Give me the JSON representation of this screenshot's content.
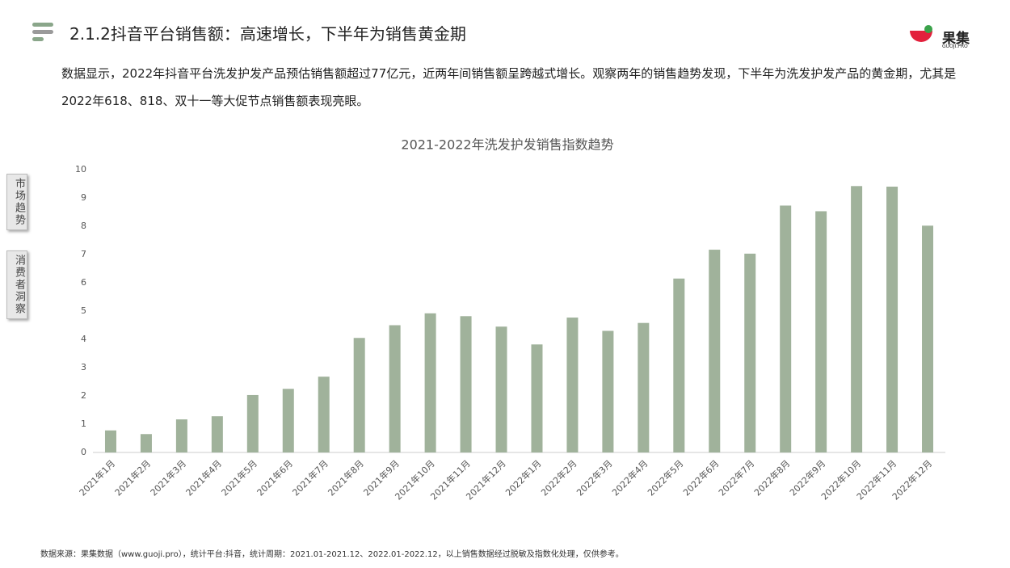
{
  "header": {
    "title": "2.1.2抖音平台销售额：高速增长，下半年为销售黄金期",
    "logo": "果集",
    "logo_sub": "GUOJI.PRO"
  },
  "summary": "数据显示，2022年抖音平台洗发护发产品预估销售额超过77亿元，近两年间销售额呈跨越式增长。观察两年的销售趋势发现，下半年为洗发护发产品的黄金期，尤其是2022年618、818、双十一等大促节点销售额表现亮眼。",
  "side_tabs": [
    "市场趋势",
    "消费者洞察"
  ],
  "footer": "数据来源：果集数据（www.guoji.pro），统计平台:抖音，统计周期：2021.01-2021.12、2022.01-2022.12，以上销售数据经过脱敏及指数化处理，仅供参考。",
  "chart_data": {
    "type": "bar",
    "title": "2021-2022年洗发护发销售指数趋势",
    "categories": [
      "2021年1月",
      "2021年2月",
      "2021年3月",
      "2021年4月",
      "2021年5月",
      "2021年6月",
      "2021年7月",
      "2021年8月",
      "2021年9月",
      "2021年10月",
      "2021年11月",
      "2021年12月",
      "2022年1月",
      "2022年2月",
      "2022年3月",
      "2022年4月",
      "2022年5月",
      "2022年6月",
      "2022年7月",
      "2022年8月",
      "2022年9月",
      "2022年10月",
      "2022年11月",
      "2022年12月"
    ],
    "values": [
      0.78,
      0.65,
      1.17,
      1.28,
      2.03,
      2.25,
      2.68,
      4.05,
      4.5,
      4.92,
      4.82,
      4.45,
      3.82,
      4.77,
      4.3,
      4.58,
      6.15,
      7.17,
      7.03,
      8.73,
      8.53,
      9.42,
      9.4,
      8.02
    ],
    "color": "#a0b29b",
    "ylim": [
      0,
      10
    ],
    "yticks": [
      0,
      1,
      2,
      3,
      4,
      5,
      6,
      7,
      8,
      9,
      10
    ],
    "grid": false
  }
}
